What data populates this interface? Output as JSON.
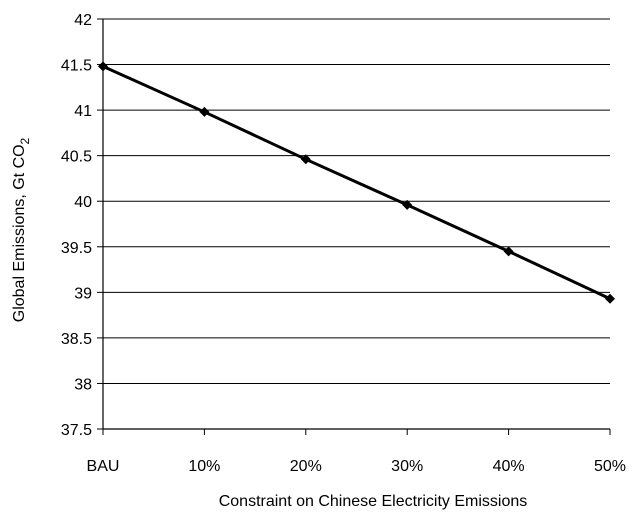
{
  "chart_data": {
    "type": "line",
    "categories": [
      "BAU",
      "10%",
      "20%",
      "30%",
      "40%",
      "50%"
    ],
    "series": [
      {
        "values": [
          41.48,
          40.98,
          40.46,
          39.96,
          39.45,
          38.93
        ]
      }
    ],
    "xlabel": "Constraint on Chinese Electricity Emissions",
    "ylabel_main": "Global Emissions, Gt CO",
    "ylabel_subscript": "2",
    "ylim": [
      37.5,
      42
    ],
    "yticks": [
      "37.5",
      "38",
      "38.5",
      "39",
      "39.5",
      "40",
      "40.5",
      "41",
      "41.5",
      "42"
    ],
    "grid": true,
    "legend": "none",
    "line_color": "#000000",
    "marker": "diamond"
  }
}
